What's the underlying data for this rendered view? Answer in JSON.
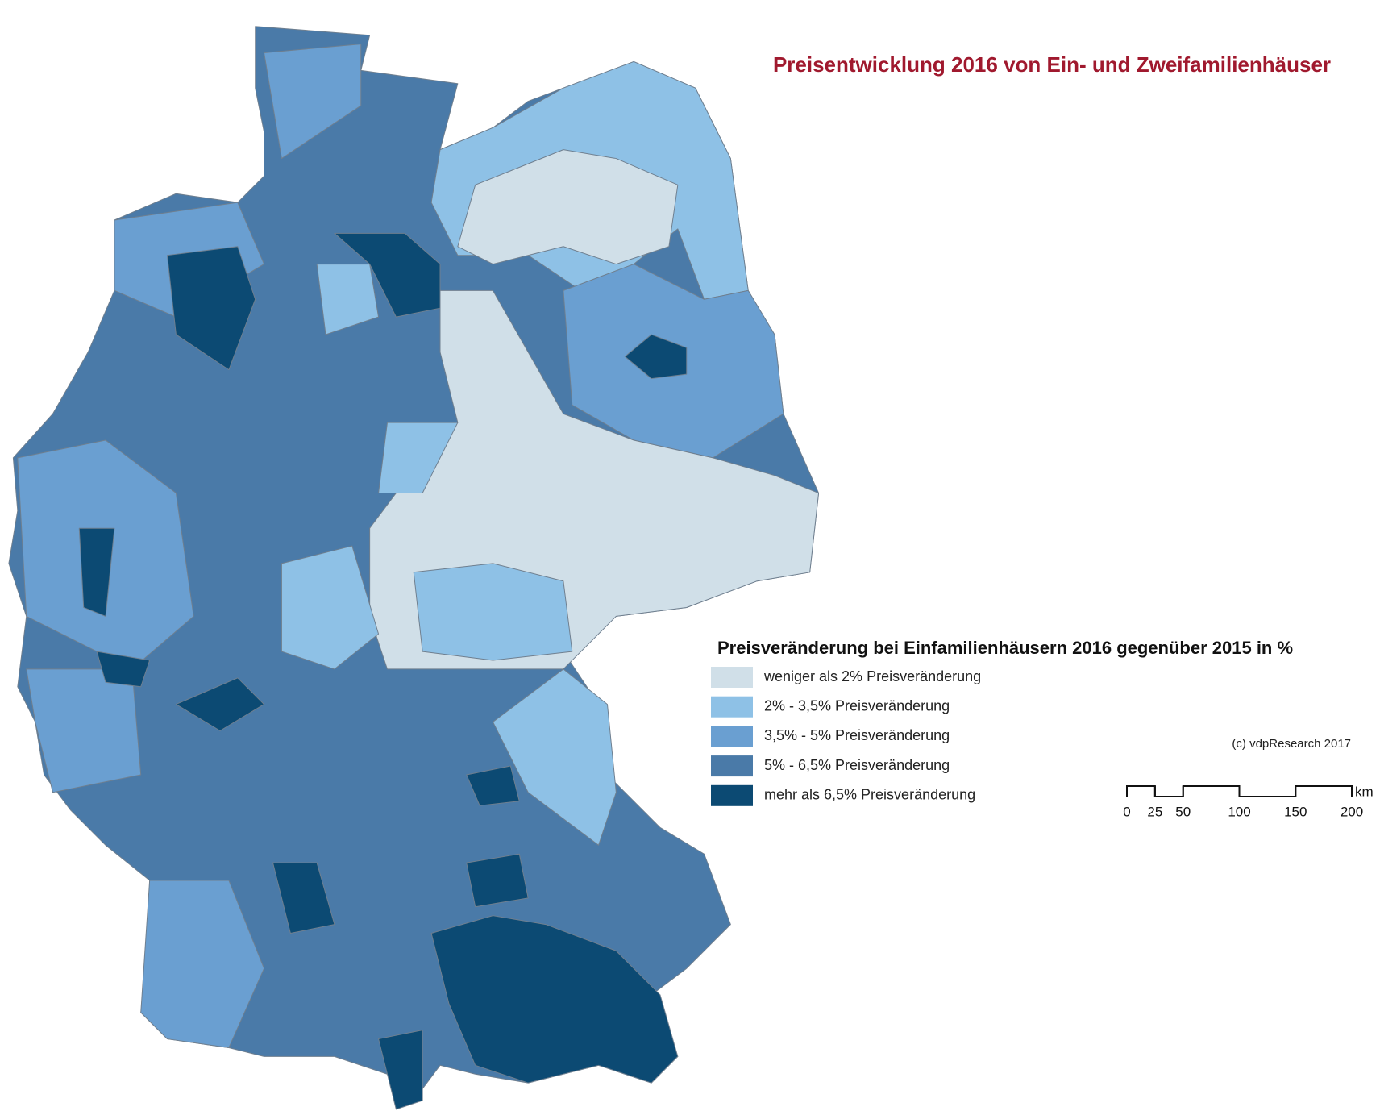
{
  "title": "Preisentwicklung 2016 von Ein- und Zweifamilienhäuser",
  "legend": {
    "title": "Preisveränderung bei Einfamilienhäusern 2016 gegenüber 2015 in %",
    "items": [
      {
        "label": "weniger als 2% Preisveränderung",
        "color": "#d0dfe8"
      },
      {
        "label": "2% - 3,5% Preisveränderung",
        "color": "#8ec1e6"
      },
      {
        "label": "3,5% - 5% Preisveränderung",
        "color": "#6a9fd1"
      },
      {
        "label": "5% - 6,5% Preisveränderung",
        "color": "#4a7aa8"
      },
      {
        "label": "mehr als 6,5% Preisveränderung",
        "color": "#0c4a73"
      }
    ]
  },
  "copyright": "(c) vdpResearch 2017",
  "scale_bar": {
    "unit": "km",
    "ticks": [
      0,
      25,
      50,
      100,
      150,
      200
    ]
  }
}
